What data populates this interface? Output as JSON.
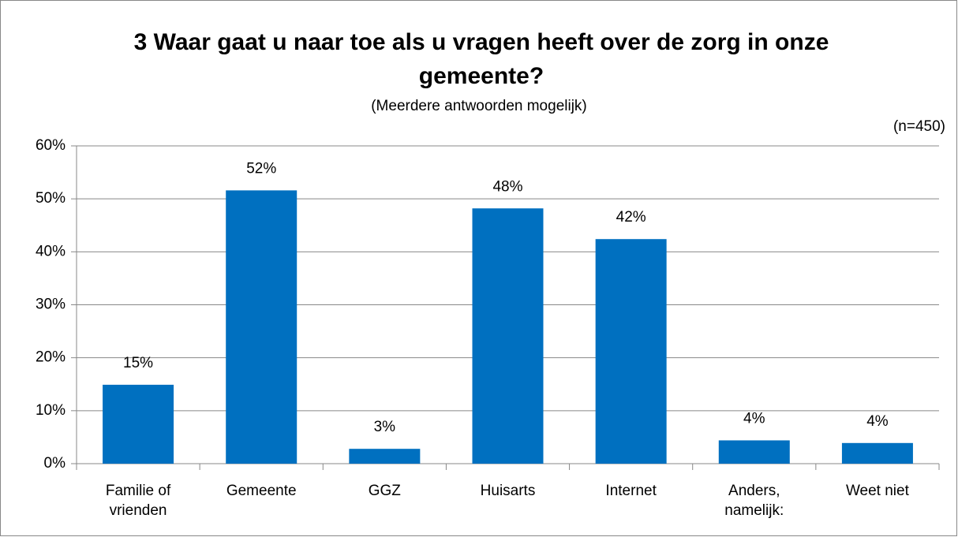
{
  "chart_data": {
    "type": "bar",
    "title": "3 Waar gaat u naar toe als u vragen heeft over de zorg in onze gemeente?",
    "subtitle": "(Meerdere antwoorden mogelijk)",
    "note": "(n=450)",
    "categories": [
      "Familie of vrienden",
      "Gemeente",
      "GGZ",
      "Huisarts",
      "Internet",
      "Anders, namelijk:",
      "Weet niet"
    ],
    "values": [
      14.9,
      51.6,
      2.8,
      48.2,
      42.4,
      4.4,
      3.9
    ],
    "value_labels": [
      "15%",
      "52%",
      "3%",
      "48%",
      "42%",
      "4%",
      "4%"
    ],
    "color": "#0070c0",
    "ylim": [
      0,
      60
    ],
    "yticks": [
      {
        "value": 0,
        "label": "0%"
      },
      {
        "value": 10,
        "label": "10%"
      },
      {
        "value": 20,
        "label": "20%"
      },
      {
        "value": 30,
        "label": "30%"
      },
      {
        "value": 40,
        "label": "40%"
      },
      {
        "value": 50,
        "label": "50%"
      },
      {
        "value": 60,
        "label": "60%"
      }
    ],
    "grid": true
  }
}
